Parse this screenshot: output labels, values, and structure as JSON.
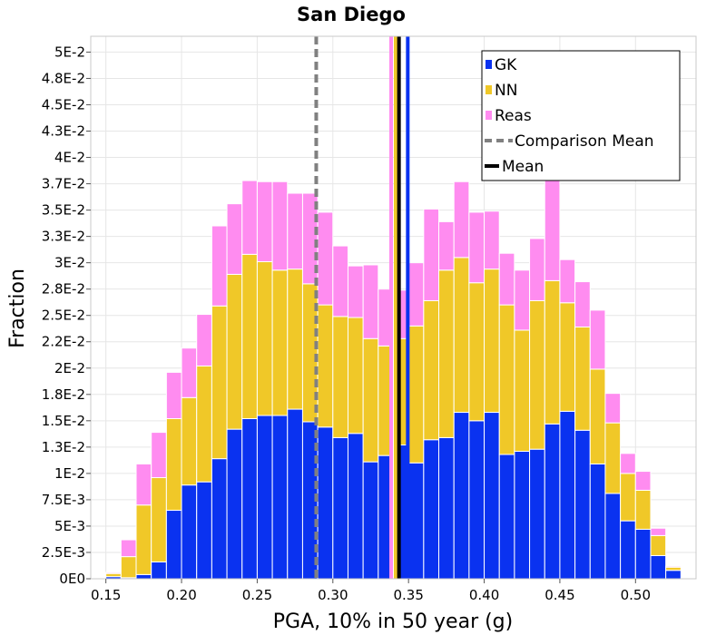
{
  "chart_data": {
    "type": "bar",
    "stacked": true,
    "title": "San Diego",
    "xlabel": "PGA, 10% in 50 year (g)",
    "ylabel": "Fraction",
    "xlim": [
      0.14,
      0.54
    ],
    "ylim": [
      0,
      0.0515
    ],
    "bin_width": 0.01,
    "x_ticks": [
      "0.15",
      "0.20",
      "0.25",
      "0.30",
      "0.35",
      "0.40",
      "0.45",
      "0.50"
    ],
    "x_tick_values": [
      0.15,
      0.2,
      0.25,
      0.3,
      0.35,
      0.4,
      0.45,
      0.5
    ],
    "y_ticks": [
      "0E0",
      "2.5E-3",
      "5E-3",
      "7.5E-3",
      "1E-2",
      "1.3E-2",
      "1.5E-2",
      "1.8E-2",
      "2E-2",
      "2.2E-2",
      "2.5E-2",
      "2.8E-2",
      "3E-2",
      "3.3E-2",
      "3.5E-2",
      "3.7E-2",
      "4E-2",
      "4.3E-2",
      "4.5E-2",
      "4.8E-2",
      "5E-2"
    ],
    "y_tick_values": [
      0,
      0.0025,
      0.005,
      0.0075,
      0.01,
      0.0125,
      0.015,
      0.0175,
      0.02,
      0.0225,
      0.025,
      0.0275,
      0.03,
      0.0325,
      0.035,
      0.0375,
      0.04,
      0.0425,
      0.045,
      0.0475,
      0.05
    ],
    "bin_starts": [
      0.15,
      0.16,
      0.17,
      0.18,
      0.19,
      0.2,
      0.21,
      0.22,
      0.23,
      0.24,
      0.25,
      0.26,
      0.27,
      0.28,
      0.29,
      0.3,
      0.31,
      0.32,
      0.33,
      0.34,
      0.35,
      0.36,
      0.37,
      0.38,
      0.39,
      0.4,
      0.41,
      0.42,
      0.43,
      0.44,
      0.45,
      0.46,
      0.47,
      0.48,
      0.49,
      0.5,
      0.51,
      0.52
    ],
    "series": [
      {
        "name": "GK",
        "color": "#0a32f0",
        "values": [
          0.0002,
          0.0001,
          0.0004,
          0.0016,
          0.0065,
          0.0089,
          0.0092,
          0.0114,
          0.0142,
          0.0152,
          0.0155,
          0.0155,
          0.0161,
          0.0149,
          0.0144,
          0.0134,
          0.0138,
          0.0111,
          0.0117,
          0.0127,
          0.011,
          0.0132,
          0.0134,
          0.0158,
          0.015,
          0.0158,
          0.0118,
          0.0121,
          0.0123,
          0.0147,
          0.0159,
          0.0141,
          0.0109,
          0.0081,
          0.0055,
          0.0047,
          0.0022,
          0.0008
        ]
      },
      {
        "name": "NN",
        "color": "#f0c828",
        "values": [
          0.0003,
          0.002,
          0.0066,
          0.008,
          0.0087,
          0.0083,
          0.011,
          0.0145,
          0.0147,
          0.0156,
          0.0146,
          0.0138,
          0.0133,
          0.0131,
          0.0116,
          0.0115,
          0.011,
          0.0117,
          0.0104,
          0.0101,
          0.013,
          0.0132,
          0.0159,
          0.0147,
          0.0131,
          0.0136,
          0.0142,
          0.0115,
          0.0141,
          0.0136,
          0.0103,
          0.0098,
          0.009,
          0.0067,
          0.0045,
          0.0037,
          0.0019,
          0.0003
        ]
      },
      {
        "name": "Reas",
        "color": "#ff8cf0",
        "values": [
          0.0001,
          0.0016,
          0.0039,
          0.0043,
          0.0044,
          0.0047,
          0.0049,
          0.0076,
          0.0067,
          0.007,
          0.0076,
          0.0084,
          0.0072,
          0.0086,
          0.0088,
          0.0067,
          0.0049,
          0.007,
          0.0054,
          0.0046,
          0.006,
          0.0087,
          0.0046,
          0.0072,
          0.0067,
          0.0055,
          0.0049,
          0.0057,
          0.0059,
          0.01,
          0.0041,
          0.0043,
          0.0056,
          0.0028,
          0.0019,
          0.0018,
          0.0007,
          0.0001
        ]
      }
    ],
    "vertical_lines": [
      {
        "name": "Comparison Mean",
        "x": 0.289,
        "color": "#808080",
        "style": "dashed"
      },
      {
        "name": "Reas mean",
        "x": 0.3385,
        "color": "#ff8cf0",
        "style": "solid"
      },
      {
        "name": "NN mean",
        "x": 0.3415,
        "color": "#f0c828",
        "style": "solid"
      },
      {
        "name": "Mean",
        "x": 0.3437,
        "color": "#000000",
        "style": "solid"
      },
      {
        "name": "GK mean",
        "x": 0.3495,
        "color": "#0a32f0",
        "style": "solid"
      }
    ],
    "legend": {
      "position": "top-right",
      "entries": [
        {
          "label": "GK",
          "kind": "box",
          "color": "#0a32f0"
        },
        {
          "label": "NN",
          "kind": "box",
          "color": "#f0c828"
        },
        {
          "label": "Reas",
          "kind": "box",
          "color": "#ff8cf0"
        },
        {
          "label": "Comparison Mean",
          "kind": "dashed-line",
          "color": "#808080"
        },
        {
          "label": "Mean",
          "kind": "line",
          "color": "#000000"
        }
      ]
    },
    "grid": true
  }
}
